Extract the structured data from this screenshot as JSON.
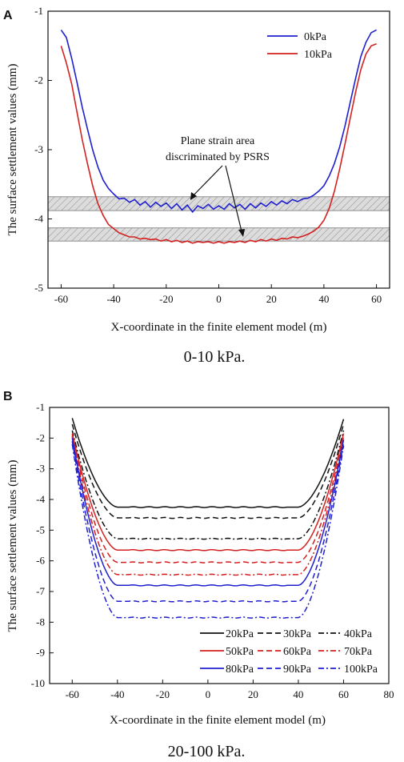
{
  "chart_data": [
    {
      "type": "line",
      "panel_label": "A",
      "caption": "0-10 kPa.",
      "xlabel": "X-coordinate in the finite element model (m)",
      "ylabel": "The surface settlement values (mm)",
      "xlim": [
        -65,
        65
      ],
      "ylim": [
        -5,
        -1
      ],
      "xticks": [
        -60,
        -40,
        -20,
        0,
        20,
        40,
        60
      ],
      "yticks": [
        -1,
        -2,
        -3,
        -4,
        -5
      ],
      "grid": false,
      "legend_position": "top-right",
      "annotation": [
        "Plane strain area",
        "discriminated by PSRS"
      ],
      "bands": [
        [
          -3.88,
          -3.68
        ],
        [
          -4.32,
          -4.13
        ]
      ],
      "colors": {
        "blue": "#1f1fcf",
        "red": "#d42020"
      },
      "series": [
        {
          "name": "0kPa",
          "color": "#1f1fcf",
          "dash": "solid",
          "x": [
            -60,
            -58,
            -56,
            -54,
            -52,
            -50,
            -48,
            -46,
            -44,
            -42,
            -40,
            -38,
            -36,
            -34,
            -32,
            -30,
            -28,
            -26,
            -24,
            -22,
            -20,
            -18,
            -16,
            -14,
            -12,
            -10,
            -8,
            -6,
            -4,
            -2,
            0,
            2,
            4,
            6,
            8,
            10,
            12,
            14,
            16,
            18,
            20,
            22,
            24,
            26,
            28,
            30,
            32,
            34,
            36,
            38,
            40,
            42,
            44,
            46,
            48,
            50,
            52,
            54,
            56,
            58,
            60
          ],
          "y": [
            -1.27,
            -1.38,
            -1.68,
            -2.02,
            -2.38,
            -2.7,
            -3.0,
            -3.25,
            -3.44,
            -3.56,
            -3.64,
            -3.71,
            -3.7,
            -3.76,
            -3.72,
            -3.8,
            -3.75,
            -3.83,
            -3.76,
            -3.82,
            -3.77,
            -3.85,
            -3.78,
            -3.87,
            -3.8,
            -3.9,
            -3.81,
            -3.85,
            -3.79,
            -3.86,
            -3.81,
            -3.86,
            -3.78,
            -3.84,
            -3.79,
            -3.86,
            -3.78,
            -3.84,
            -3.77,
            -3.82,
            -3.75,
            -3.8,
            -3.74,
            -3.78,
            -3.72,
            -3.75,
            -3.71,
            -3.7,
            -3.66,
            -3.6,
            -3.52,
            -3.38,
            -3.2,
            -2.96,
            -2.66,
            -2.32,
            -1.98,
            -1.66,
            -1.45,
            -1.31,
            -1.27
          ]
        },
        {
          "name": "10kPa",
          "color": "#d42020",
          "dash": "solid",
          "x": [
            -60,
            -58,
            -56,
            -54,
            -52,
            -50,
            -48,
            -46,
            -44,
            -42,
            -40,
            -38,
            -36,
            -34,
            -32,
            -30,
            -28,
            -26,
            -24,
            -22,
            -20,
            -18,
            -16,
            -14,
            -12,
            -10,
            -8,
            -6,
            -4,
            -2,
            0,
            2,
            4,
            6,
            8,
            10,
            12,
            14,
            16,
            18,
            20,
            22,
            24,
            26,
            28,
            30,
            32,
            34,
            36,
            38,
            40,
            42,
            44,
            46,
            48,
            50,
            52,
            54,
            56,
            58,
            60
          ],
          "y": [
            -1.5,
            -1.75,
            -2.05,
            -2.45,
            -2.85,
            -3.2,
            -3.52,
            -3.78,
            -3.95,
            -4.08,
            -4.14,
            -4.2,
            -4.23,
            -4.26,
            -4.26,
            -4.29,
            -4.28,
            -4.3,
            -4.29,
            -4.32,
            -4.3,
            -4.33,
            -4.31,
            -4.34,
            -4.32,
            -4.35,
            -4.33,
            -4.34,
            -4.33,
            -4.35,
            -4.33,
            -4.35,
            -4.33,
            -4.34,
            -4.32,
            -4.34,
            -4.31,
            -4.33,
            -4.3,
            -4.32,
            -4.29,
            -4.31,
            -4.28,
            -4.29,
            -4.26,
            -4.27,
            -4.25,
            -4.22,
            -4.18,
            -4.12,
            -4.02,
            -3.85,
            -3.6,
            -3.28,
            -2.92,
            -2.55,
            -2.18,
            -1.85,
            -1.62,
            -1.5,
            -1.47
          ]
        }
      ]
    },
    {
      "type": "line",
      "panel_label": "B",
      "caption": "20-100 kPa.",
      "xlabel": "X-coordinate in the finite element model (m)",
      "ylabel": "The surface settlement values (mm)",
      "xlim": [
        -70,
        80
      ],
      "ylim": [
        -10,
        -1
      ],
      "xticks": [
        -60,
        -40,
        -20,
        0,
        20,
        40,
        60,
        80
      ],
      "yticks": [
        -1,
        -2,
        -3,
        -4,
        -5,
        -6,
        -7,
        -8,
        -9,
        -10
      ],
      "grid": false,
      "legend_position": "bottom-right",
      "series": [
        {
          "name": "20kPa",
          "color": "#111111",
          "dash": "solid",
          "center": -4.25,
          "edge_left": -1.35,
          "edge_right": -1.38
        },
        {
          "name": "30kPa",
          "color": "#111111",
          "dash": "dash",
          "center": -4.6,
          "edge_left": -1.55,
          "edge_right": -1.55
        },
        {
          "name": "40kPa",
          "color": "#111111",
          "dash": "dashdot",
          "center": -5.28,
          "edge_left": -1.75,
          "edge_right": -1.75
        },
        {
          "name": "50kPa",
          "color": "#d42020",
          "dash": "solid",
          "center": -5.65,
          "edge_left": -1.85,
          "edge_right": -1.85
        },
        {
          "name": "60kPa",
          "color": "#d42020",
          "dash": "dash",
          "center": -6.05,
          "edge_left": -1.9,
          "edge_right": -1.95
        },
        {
          "name": "70kPa",
          "color": "#d42020",
          "dash": "dashdot",
          "center": -6.45,
          "edge_left": -1.95,
          "edge_right": -2.0
        },
        {
          "name": "80kPa",
          "color": "#1f1fcf",
          "dash": "solid",
          "center": -6.8,
          "edge_left": -2.0,
          "edge_right": -2.05
        },
        {
          "name": "90kPa",
          "color": "#1f1fcf",
          "dash": "dash",
          "center": -7.32,
          "edge_left": -2.1,
          "edge_right": -2.15
        },
        {
          "name": "100kPa",
          "color": "#1f1fcf",
          "dash": "dashdot",
          "center": -7.85,
          "edge_left": -2.2,
          "edge_right": -2.25
        }
      ]
    }
  ]
}
